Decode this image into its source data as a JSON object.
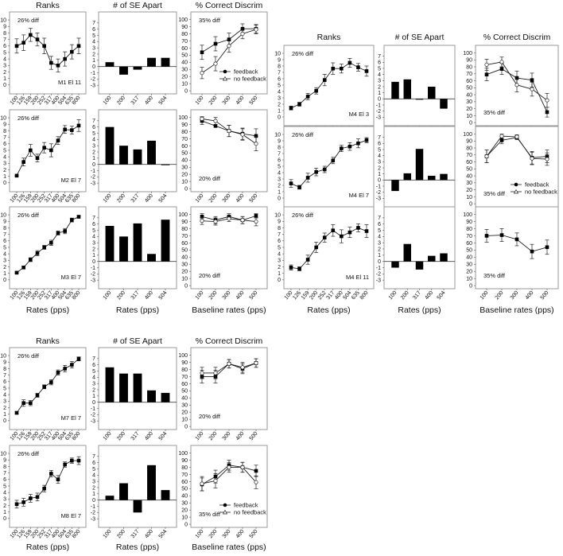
{
  "figure": {
    "left_group": {
      "column_titles": [
        "Ranks",
        "# of SE Apart",
        "% Correct Discrim"
      ],
      "x_labels": [
        "Rates (pps)",
        "Rates (pps)",
        "Baseline rates (pps)"
      ]
    },
    "right_group": {
      "column_titles": [
        "Ranks",
        "# of SE Apart",
        "% Correct Discrim"
      ],
      "x_labels": [
        "Rates (pps)",
        "Rates (pps)",
        "Baseline rates (pps)"
      ]
    },
    "bottom_group": {
      "column_titles": [
        "Ranks",
        "# of SE Apart",
        "% Correct Discrim"
      ],
      "x_labels": [
        "Rates (pps)",
        "Rates (pps)",
        "Baseline rates (pps)"
      ]
    },
    "legend": {
      "feedback": "feedback",
      "no_feedback": "no feedback"
    }
  },
  "chart_data": [
    {
      "id": "M1-ranks",
      "type": "line",
      "title": "Ranks",
      "subject": "M1 El 11",
      "annotation": "26% diff",
      "x": [
        "100",
        "126",
        "159",
        "200",
        "252",
        "317",
        "400",
        "504",
        "635",
        "800"
      ],
      "values": [
        6.0,
        6.5,
        7.7,
        7.0,
        6.0,
        3.4,
        3.0,
        4.0,
        5.1,
        6.0
      ],
      "errors": [
        1.1,
        1.2,
        1.0,
        1.0,
        1.2,
        1.0,
        1.0,
        1.1,
        1.1,
        1.2
      ],
      "ylim": [
        0,
        10
      ]
    },
    {
      "id": "M1-se",
      "type": "bar",
      "title": "# of SE Apart",
      "categories": [
        "100",
        "200",
        "317",
        "400",
        "504"
      ],
      "values": [
        0.7,
        -1.3,
        -0.5,
        1.4,
        1.4
      ],
      "ylim": [
        -3,
        7
      ]
    },
    {
      "id": "M1-pct",
      "type": "line",
      "title": "% Correct Discrim",
      "annotation": "35% diff",
      "x": [
        "100",
        "200",
        "300",
        "400",
        "500"
      ],
      "series": [
        {
          "name": "feedback",
          "values": [
            54,
            66,
            72,
            87,
            87
          ],
          "errors": [
            10,
            10,
            9,
            7,
            6
          ]
        },
        {
          "name": "no feedback",
          "values": [
            25,
            38,
            63,
            80,
            86
          ],
          "errors": [
            8,
            10,
            9,
            7,
            6
          ]
        }
      ],
      "ylim": [
        0,
        100
      ]
    },
    {
      "id": "M2-ranks",
      "type": "line",
      "title": "Ranks",
      "subject": "M2 El 7",
      "annotation": "26% diff",
      "x": [
        "100",
        "126",
        "159",
        "200",
        "252",
        "317",
        "400",
        "504",
        "635",
        "800"
      ],
      "values": [
        1.1,
        3.2,
        5.0,
        3.8,
        5.4,
        5.0,
        6.5,
        8.2,
        8.1,
        8.8
      ],
      "errors": [
        0.1,
        0.6,
        0.9,
        0.6,
        0.8,
        1.0,
        0.6,
        0.6,
        0.6,
        0.9
      ],
      "ylim": [
        0,
        10
      ]
    },
    {
      "id": "M2-se",
      "type": "bar",
      "title": "# of SE Apart",
      "categories": [
        "100",
        "200",
        "317",
        "400",
        "504"
      ],
      "values": [
        6.0,
        3.0,
        2.4,
        3.8,
        -0.1
      ],
      "ylim": [
        -3,
        7
      ]
    },
    {
      "id": "M2-pct",
      "type": "line",
      "title": "% Correct Discrim",
      "annotation": "20% diff",
      "x": [
        "100",
        "200",
        "300",
        "400",
        "500"
      ],
      "series": [
        {
          "name": "feedback",
          "values": [
            95,
            88,
            81,
            77,
            74
          ],
          "errors": [
            5,
            0,
            8,
            8,
            10
          ]
        },
        {
          "name": "no feedback",
          "values": [
            98,
            95,
            81,
            76,
            63
          ],
          "errors": [
            3,
            5,
            8,
            8,
            10
          ]
        }
      ],
      "ylim": [
        0,
        100
      ]
    },
    {
      "id": "M3-ranks",
      "type": "line",
      "title": "Ranks",
      "subject": "M3 El 7",
      "annotation": "26% diff",
      "xlabel": "Rates (pps)",
      "x": [
        "100",
        "126",
        "159",
        "200",
        "252",
        "317",
        "400",
        "504",
        "635",
        "800"
      ],
      "values": [
        1.1,
        1.9,
        3.1,
        4.1,
        5.0,
        5.7,
        7.2,
        7.5,
        9.2,
        9.7
      ],
      "errors": [
        0.1,
        0.2,
        0.3,
        0.4,
        0.3,
        0.4,
        0.3,
        0.4,
        0.3,
        0.2
      ],
      "ylim": [
        0,
        10
      ]
    },
    {
      "id": "M3-se",
      "type": "bar",
      "title": "# of SE Apart",
      "xlabel": "Rates (pps)",
      "categories": [
        "100",
        "200",
        "317",
        "400",
        "504"
      ],
      "values": [
        5.7,
        4.0,
        6.1,
        1.2,
        6.7
      ],
      "ylim": [
        -3,
        7
      ]
    },
    {
      "id": "M3-pct",
      "type": "line",
      "title": "% Correct Discrim",
      "annotation": "20% diff",
      "xlabel": "Baseline rates (pps)",
      "x": [
        "100",
        "200",
        "300",
        "400",
        "500"
      ],
      "series": [
        {
          "name": "feedback",
          "values": [
            97,
            92,
            97,
            92,
            98
          ],
          "errors": [
            4,
            5,
            4,
            5,
            3
          ]
        },
        {
          "name": "no feedback",
          "values": [
            91,
            90,
            94,
            92,
            90
          ],
          "errors": [
            5,
            5,
            4,
            5,
            6
          ]
        }
      ],
      "ylim": [
        0,
        100
      ]
    },
    {
      "id": "M4-El3-ranks",
      "type": "line",
      "title": "Ranks",
      "subject": "M4 El 3",
      "annotation": "26% diff",
      "x": [
        "100",
        "126",
        "159",
        "200",
        "252",
        "317",
        "400",
        "504",
        "635",
        "800"
      ],
      "values": [
        1.4,
        2.0,
        3.2,
        4.1,
        5.8,
        7.6,
        7.6,
        8.5,
        7.8,
        7.2
      ],
      "errors": [
        0.3,
        0.3,
        0.5,
        0.5,
        0.9,
        0.9,
        0.7,
        0.7,
        0.6,
        0.8
      ],
      "ylim": [
        0,
        10
      ]
    },
    {
      "id": "M4-El3-se",
      "type": "bar",
      "title": "# of SE Apart",
      "categories": [
        "100",
        "200",
        "317",
        "400",
        "504"
      ],
      "values": [
        2.8,
        3.2,
        -0.1,
        2.0,
        -1.6
      ],
      "ylim": [
        -3,
        7
      ]
    },
    {
      "id": "M4-El3-pct",
      "type": "line",
      "title": "% Correct Discrim",
      "annotation": "35% diff",
      "x": [
        "100",
        "200",
        "300",
        "400",
        "500"
      ],
      "series": [
        {
          "name": "feedback",
          "values": [
            69,
            77,
            64,
            61,
            15
          ],
          "errors": [
            9,
            8,
            10,
            10,
            7
          ]
        },
        {
          "name": "no feedback",
          "values": [
            83,
            87,
            54,
            48,
            32
          ],
          "errors": [
            8,
            7,
            10,
            10,
            10
          ]
        }
      ],
      "ylim": [
        0,
        100
      ]
    },
    {
      "id": "M4-El7-ranks",
      "type": "line",
      "title": "Ranks",
      "subject": "M4 El 7",
      "annotation": "26% diff",
      "x": [
        "100",
        "126",
        "159",
        "200",
        "252",
        "317",
        "400",
        "504",
        "635",
        "800"
      ],
      "values": [
        2.3,
        1.7,
        3.2,
        4.1,
        4.5,
        5.9,
        7.8,
        8.1,
        8.6,
        9.1
      ],
      "errors": [
        0.6,
        0.3,
        0.7,
        0.6,
        0.5,
        0.5,
        0.5,
        0.6,
        0.7,
        0.4
      ],
      "ylim": [
        0,
        10
      ]
    },
    {
      "id": "M4-El7-se",
      "type": "bar",
      "title": "# of SE Apart",
      "categories": [
        "100",
        "200",
        "317",
        "400",
        "504"
      ],
      "values": [
        -1.8,
        1.1,
        5.1,
        0.7,
        1.0
      ],
      "ylim": [
        -3,
        7
      ]
    },
    {
      "id": "M4-El7-pct",
      "type": "line",
      "title": "% Correct Discrim",
      "annotation": "35% diff",
      "x": [
        "100",
        "200",
        "300",
        "400",
        "500"
      ],
      "series": [
        {
          "name": "feedback",
          "values": [
            68,
            91,
            95,
            66,
            68
          ],
          "errors": [
            9,
            5,
            3,
            9,
            9
          ]
        },
        {
          "name": "no feedback",
          "values": [
            68,
            97,
            96,
            65,
            64
          ],
          "errors": [
            9,
            3,
            3,
            9,
            9
          ]
        }
      ],
      "ylim": [
        0,
        100
      ]
    },
    {
      "id": "M4-El11-ranks",
      "type": "line",
      "title": "Ranks",
      "subject": "M4 El 11",
      "annotation": "26% diff",
      "xlabel": "Rates (pps)",
      "x": [
        "100",
        "126",
        "159",
        "200",
        "252",
        "317",
        "400",
        "504",
        "635",
        "800"
      ],
      "values": [
        1.9,
        1.7,
        3.1,
        5.0,
        6.5,
        7.6,
        6.7,
        7.3,
        8.0,
        7.5
      ],
      "errors": [
        0.4,
        0.3,
        0.7,
        0.8,
        0.7,
        0.9,
        1.0,
        0.8,
        0.6,
        1.0
      ],
      "ylim": [
        0,
        10
      ]
    },
    {
      "id": "M4-El11-se",
      "type": "bar",
      "title": "# of SE Apart",
      "xlabel": "Rates (pps)",
      "categories": [
        "100",
        "200",
        "317",
        "400",
        "504"
      ],
      "values": [
        -1.0,
        2.8,
        -1.3,
        0.9,
        1.3
      ],
      "ylim": [
        -3,
        7
      ]
    },
    {
      "id": "M4-El11-pct",
      "type": "line",
      "title": "% Correct Discrim",
      "annotation": "35% diff",
      "xlabel": "Baseline rates (pps)",
      "x": [
        "100",
        "200",
        "300",
        "400",
        "500"
      ],
      "series": [
        {
          "name": "feedback",
          "values": [
            70,
            71,
            65,
            48,
            54
          ],
          "errors": [
            9,
            9,
            9,
            10,
            10
          ]
        }
      ],
      "ylim": [
        0,
        100
      ]
    },
    {
      "id": "M7-ranks",
      "type": "line",
      "title": "Ranks",
      "subject": "M7 El 7",
      "annotation": "26% diff",
      "x": [
        "100",
        "126",
        "159",
        "200",
        "252",
        "317",
        "400",
        "504",
        "635",
        "800"
      ],
      "values": [
        1.2,
        2.7,
        2.7,
        3.9,
        5.2,
        5.9,
        7.4,
        8.0,
        8.6,
        9.5
      ],
      "errors": [
        0.2,
        0.5,
        0.4,
        0.3,
        0.3,
        0.4,
        0.4,
        0.5,
        0.5,
        0.3
      ],
      "ylim": [
        0,
        10
      ]
    },
    {
      "id": "M7-se",
      "type": "bar",
      "title": "# of SE Apart",
      "categories": [
        "100",
        "200",
        "317",
        "400",
        "504"
      ],
      "values": [
        5.6,
        4.6,
        4.6,
        1.9,
        1.5
      ],
      "ylim": [
        -3,
        7
      ]
    },
    {
      "id": "M7-pct",
      "type": "line",
      "title": "% Correct Discrim",
      "annotation": "20% diff",
      "x": [
        "100",
        "200",
        "300",
        "400",
        "500"
      ],
      "series": [
        {
          "name": "feedback",
          "values": [
            70,
            70,
            88,
            81,
            89
          ],
          "errors": [
            9,
            9,
            6,
            7,
            6
          ]
        },
        {
          "name": "no feedback",
          "values": [
            75,
            75,
            88,
            83,
            89
          ],
          "errors": [
            8,
            8,
            6,
            7,
            6
          ]
        }
      ],
      "ylim": [
        0,
        100
      ]
    },
    {
      "id": "M8-ranks",
      "type": "line",
      "title": "Ranks",
      "subject": "M8 El 7",
      "annotation": "26% diff",
      "xlabel": "Rates (pps)",
      "x": [
        "100",
        "126",
        "159",
        "200",
        "252",
        "317",
        "400",
        "504",
        "635",
        "800"
      ],
      "values": [
        2.2,
        2.5,
        3.1,
        3.3,
        4.6,
        6.9,
        6.0,
        8.3,
        8.9,
        8.9
      ],
      "errors": [
        0.6,
        0.6,
        0.6,
        0.6,
        0.5,
        0.5,
        0.6,
        0.4,
        0.4,
        0.6
      ],
      "ylim": [
        0,
        10
      ]
    },
    {
      "id": "M8-se",
      "type": "bar",
      "title": "# of SE Apart",
      "xlabel": "Rates (pps)",
      "categories": [
        "100",
        "200",
        "317",
        "400",
        "504"
      ],
      "values": [
        0.7,
        2.7,
        -2.0,
        5.6,
        1.6
      ],
      "ylim": [
        -3,
        7
      ]
    },
    {
      "id": "M8-pct",
      "type": "line",
      "title": "% Correct Discrim",
      "annotation": "35% diff",
      "xlabel": "Baseline rates (pps)",
      "x": [
        "100",
        "200",
        "300",
        "400",
        "500"
      ],
      "series": [
        {
          "name": "feedback",
          "values": [
            56,
            67,
            83,
            80,
            75
          ],
          "errors": [
            9,
            9,
            7,
            7,
            8
          ]
        },
        {
          "name": "no feedback",
          "values": [
            57,
            61,
            80,
            80,
            59
          ],
          "errors": [
            10,
            10,
            7,
            7,
            9
          ]
        }
      ],
      "ylim": [
        0,
        100
      ]
    }
  ]
}
